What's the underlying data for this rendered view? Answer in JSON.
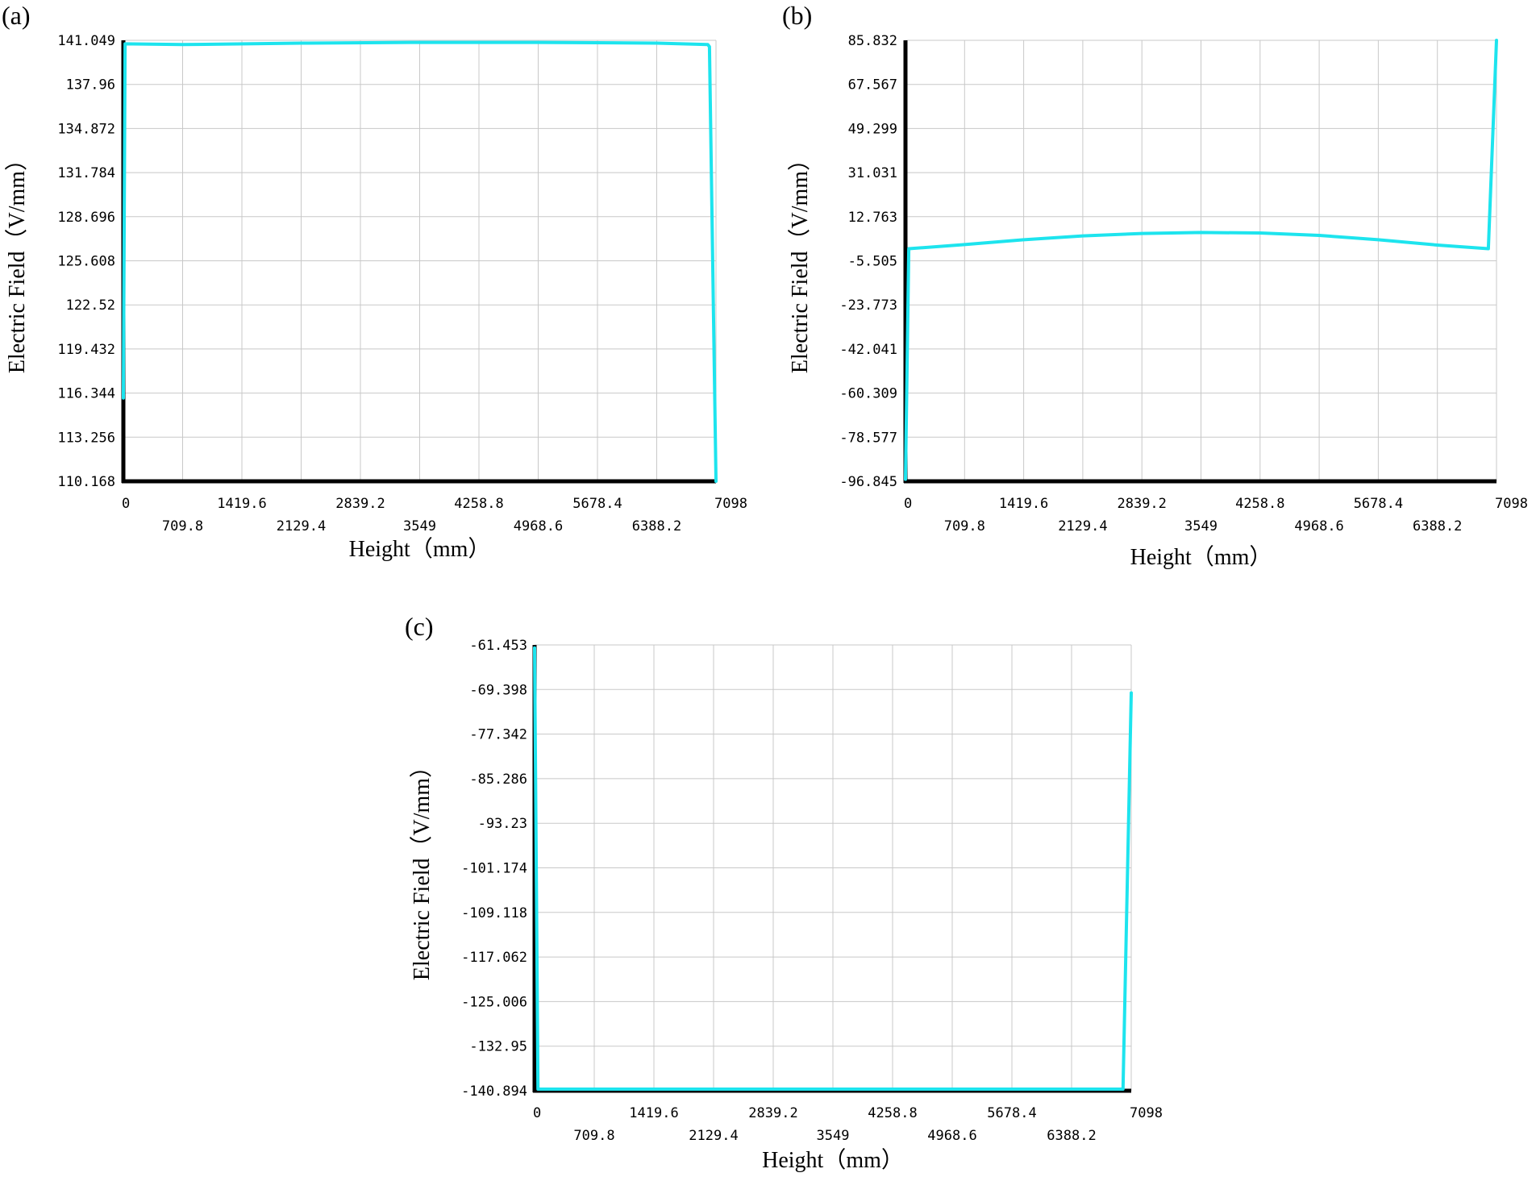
{
  "colors": {
    "series": "#1de4ee",
    "axis": "#000000",
    "grid": "#c8c8c8"
  },
  "chart_data": [
    {
      "type": "line",
      "panel_label": "(a)",
      "xlabel": "Height（mm）",
      "ylabel": "Electric Field（V/mm）",
      "xlim": [
        0,
        7098
      ],
      "ylim": [
        110.168,
        141.049
      ],
      "x_ticks": [
        "0",
        "709.8",
        "1419.6",
        "2129.4",
        "2839.2",
        "3549",
        "4258.8",
        "4968.6",
        "5678.4",
        "6388.2",
        "7098"
      ],
      "y_ticks": [
        "141.049",
        "137.96",
        "134.872",
        "131.784",
        "128.696",
        "125.608",
        "122.52",
        "119.432",
        "116.344",
        "113.256",
        "110.168"
      ],
      "grid": true,
      "series": [
        {
          "x": [
            0,
            20,
            709.8,
            2129.4,
            3549,
            4968.6,
            6388.2,
            7000,
            7020,
            7098
          ],
          "y": [
            116.0,
            140.8,
            140.75,
            140.85,
            140.9,
            140.9,
            140.85,
            140.75,
            140.6,
            110.168
          ]
        }
      ]
    },
    {
      "type": "line",
      "panel_label": "(b)",
      "xlabel": "Height（mm）",
      "ylabel": "Electric Field（V/mm）",
      "xlim": [
        0,
        7098
      ],
      "ylim": [
        -96.845,
        85.832
      ],
      "x_ticks": [
        "0",
        "709.8",
        "1419.6",
        "2129.4",
        "2839.2",
        "3549",
        "4258.8",
        "4968.6",
        "5678.4",
        "6388.2",
        "7098"
      ],
      "y_ticks": [
        "85.832",
        "67.567",
        "49.299",
        "31.031",
        "12.763",
        "-5.505",
        "-23.773",
        "-42.041",
        "-60.309",
        "-78.577",
        "-96.845"
      ],
      "grid": true,
      "series": [
        {
          "x": [
            0,
            40,
            709.8,
            1419.6,
            2129.4,
            2839.2,
            3549,
            4258.8,
            4968.6,
            5678.4,
            6388.2,
            7000,
            7098
          ],
          "y": [
            -96.0,
            -0.5,
            1.2,
            3.2,
            4.8,
            5.8,
            6.2,
            6.0,
            5.0,
            3.2,
            1.0,
            -0.5,
            85.832
          ]
        }
      ]
    },
    {
      "type": "line",
      "panel_label": "(c)",
      "xlabel": "Height（mm）",
      "ylabel": "Electric Field（V/mm）",
      "xlim": [
        0,
        7098
      ],
      "ylim": [
        -140.894,
        -61.453
      ],
      "x_ticks": [
        "0",
        "709.8",
        "1419.6",
        "2129.4",
        "2839.2",
        "3549",
        "4258.8",
        "4968.6",
        "5678.4",
        "6388.2",
        "7098"
      ],
      "y_ticks": [
        "-61.453",
        "-69.398",
        "-77.342",
        "-85.286",
        "-93.23",
        "-101.174",
        "-109.118",
        "-117.062",
        "-125.006",
        "-132.95",
        "-140.894"
      ],
      "grid": true,
      "series": [
        {
          "x": [
            0,
            40,
            3549,
            7000,
            7098
          ],
          "y": [
            -62.0,
            -140.6,
            -140.6,
            -140.6,
            -70.0
          ]
        }
      ]
    }
  ]
}
